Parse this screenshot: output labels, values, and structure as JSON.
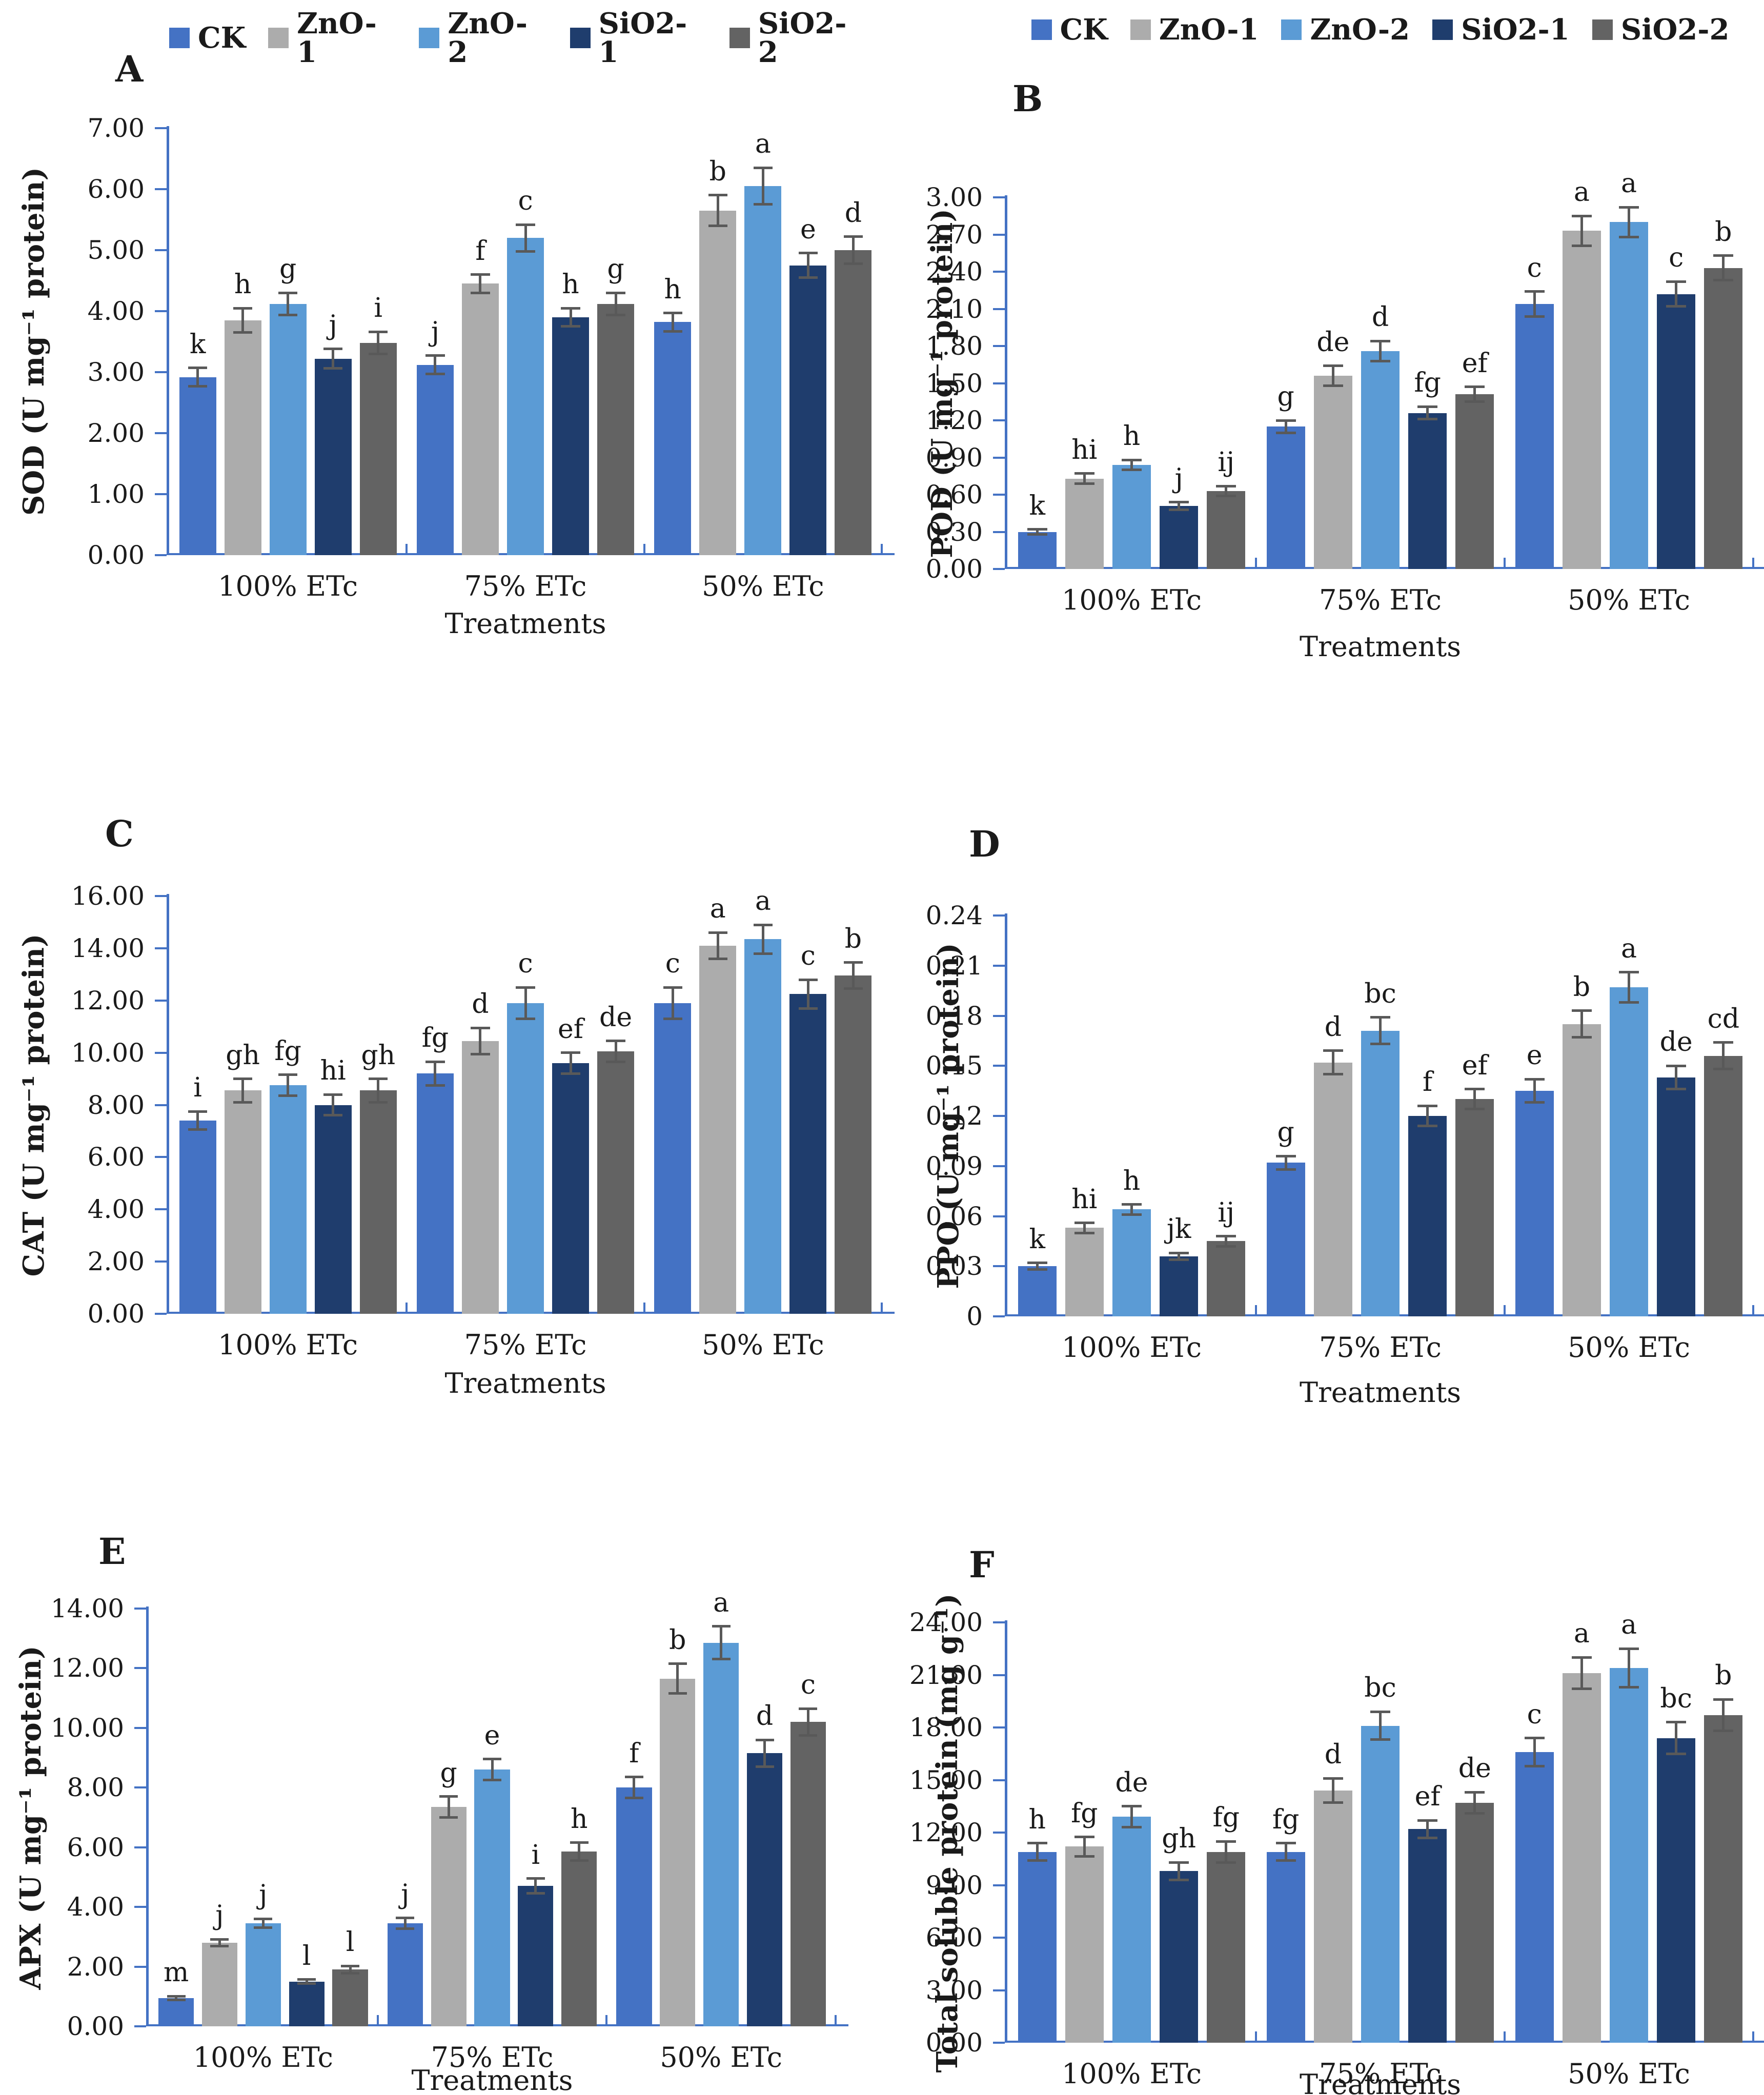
{
  "figure": {
    "x_axis_label": "Treatments",
    "categories": [
      "100% ETc",
      "75% ETc",
      "50% ETc"
    ]
  },
  "legend": {
    "items": [
      {
        "label": "CK",
        "color": "#4472C4"
      },
      {
        "label": "ZnO-1",
        "color": "#ACACAC"
      },
      {
        "label": "ZnO-2",
        "color": "#5B9BD5"
      },
      {
        "label": "SiO2-1",
        "color": "#1F3D6D"
      },
      {
        "label": "SiO2-2",
        "color": "#636363"
      }
    ]
  },
  "colors": {
    "axis": "#4472C4",
    "error_bar": "#595959",
    "text": "#1a1a1a"
  },
  "chart_data": [
    {
      "panel_letter": "A",
      "type": "bar",
      "ylabel": "SOD (U mg⁻¹ protein)",
      "xlabel": "Treatments",
      "ylim": [
        0,
        7
      ],
      "y_ticks": [
        "7.00",
        "6.00",
        "5.00",
        "4.00",
        "3.00",
        "2.00",
        "1.00",
        "0.00"
      ],
      "categories": [
        "100% ETc",
        "75% ETc",
        "50% ETc"
      ],
      "series": [
        {
          "name": "CK",
          "values": [
            2.92,
            3.12,
            3.82
          ],
          "errors": [
            0.15,
            0.15,
            0.15
          ],
          "sig_letters": [
            "k",
            "j",
            "h"
          ]
        },
        {
          "name": "ZnO-1",
          "values": [
            3.85,
            4.45,
            5.65
          ],
          "errors": [
            0.2,
            0.15,
            0.25
          ],
          "sig_letters": [
            "h",
            "f",
            "b"
          ]
        },
        {
          "name": "ZnO-2",
          "values": [
            4.12,
            5.2,
            6.05
          ],
          "errors": [
            0.18,
            0.22,
            0.3
          ],
          "sig_letters": [
            "g",
            "c",
            "a"
          ]
        },
        {
          "name": "SiO2-1",
          "values": [
            3.22,
            3.9,
            4.75
          ],
          "errors": [
            0.16,
            0.15,
            0.2
          ],
          "sig_letters": [
            "j",
            "h",
            "e"
          ]
        },
        {
          "name": "SiO2-2",
          "values": [
            3.48,
            4.12,
            5.0
          ],
          "errors": [
            0.18,
            0.18,
            0.22
          ],
          "sig_letters": [
            "i",
            "g",
            "d"
          ]
        }
      ]
    },
    {
      "panel_letter": "B",
      "type": "bar",
      "ylabel": "POD (U mg⁻¹ protein)",
      "xlabel": "Treatments",
      "ylim": [
        0,
        3
      ],
      "y_ticks": [
        "3.00",
        "2.70",
        "2.40",
        "2.10",
        "1.80",
        "1.50",
        "1.20",
        "0.90",
        "0.60",
        "0.30",
        "0.00"
      ],
      "categories": [
        "100% ETc",
        "75% ETc",
        "50% ETc"
      ],
      "series": [
        {
          "name": "CK",
          "values": [
            0.3,
            1.15,
            2.14
          ],
          "errors": [
            0.02,
            0.05,
            0.1
          ],
          "sig_letters": [
            "k",
            "g",
            "c"
          ]
        },
        {
          "name": "ZnO-1",
          "values": [
            0.73,
            1.56,
            2.73
          ],
          "errors": [
            0.04,
            0.08,
            0.12
          ],
          "sig_letters": [
            "hi",
            "de",
            "a"
          ]
        },
        {
          "name": "ZnO-2",
          "values": [
            0.84,
            1.76,
            2.8
          ],
          "errors": [
            0.04,
            0.08,
            0.12
          ],
          "sig_letters": [
            "h",
            "d",
            "a"
          ]
        },
        {
          "name": "SiO2-1",
          "values": [
            0.51,
            1.26,
            2.22
          ],
          "errors": [
            0.03,
            0.05,
            0.1
          ],
          "sig_letters": [
            "j",
            "fg",
            "c"
          ]
        },
        {
          "name": "SiO2-2",
          "values": [
            0.63,
            1.41,
            2.43
          ],
          "errors": [
            0.04,
            0.06,
            0.1
          ],
          "sig_letters": [
            "ij",
            "ef",
            "b"
          ]
        }
      ]
    },
    {
      "panel_letter": "C",
      "type": "bar",
      "ylabel": "CAT (U mg⁻¹ protein)",
      "xlabel": "Treatments",
      "ylim": [
        0,
        16
      ],
      "y_ticks": [
        "16.00",
        "14.00",
        "12.00",
        "10.00",
        "8.00",
        "6.00",
        "4.00",
        "2.00",
        "0.00"
      ],
      "categories": [
        "100% ETc",
        "75% ETc",
        "50% ETc"
      ],
      "series": [
        {
          "name": "CK",
          "values": [
            7.4,
            9.2,
            11.9
          ],
          "errors": [
            0.35,
            0.45,
            0.6
          ],
          "sig_letters": [
            "i",
            "fg",
            "c"
          ]
        },
        {
          "name": "ZnO-1",
          "values": [
            8.55,
            10.45,
            14.1
          ],
          "errors": [
            0.45,
            0.5,
            0.5
          ],
          "sig_letters": [
            "gh",
            "d",
            "a"
          ]
        },
        {
          "name": "ZnO-2",
          "values": [
            8.75,
            11.9,
            14.35
          ],
          "errors": [
            0.4,
            0.6,
            0.55
          ],
          "sig_letters": [
            "fg",
            "c",
            "a"
          ]
        },
        {
          "name": "SiO2-1",
          "values": [
            8.0,
            9.6,
            12.25
          ],
          "errors": [
            0.4,
            0.4,
            0.55
          ],
          "sig_letters": [
            "hi",
            "ef",
            "c"
          ]
        },
        {
          "name": "SiO2-2",
          "values": [
            8.55,
            10.05,
            12.95
          ],
          "errors": [
            0.45,
            0.4,
            0.5
          ],
          "sig_letters": [
            "gh",
            "de",
            "b"
          ]
        }
      ]
    },
    {
      "panel_letter": "D",
      "type": "bar",
      "ylabel": "PPO (U mg⁻¹ protein)",
      "xlabel": "Treatments",
      "ylim": [
        0,
        0.24
      ],
      "y_ticks": [
        "0.24",
        "0.21",
        "0.18",
        "0.15",
        "0.12",
        "0.09",
        "0.06",
        "0.03",
        "0"
      ],
      "categories": [
        "100% ETc",
        "75% ETc",
        "50% ETc"
      ],
      "series": [
        {
          "name": "CK",
          "values": [
            0.03,
            0.092,
            0.135
          ],
          "errors": [
            0.002,
            0.004,
            0.007
          ],
          "sig_letters": [
            "k",
            "g",
            "e"
          ]
        },
        {
          "name": "ZnO-1",
          "values": [
            0.053,
            0.152,
            0.175
          ],
          "errors": [
            0.003,
            0.007,
            0.008
          ],
          "sig_letters": [
            "hi",
            "d",
            "b"
          ]
        },
        {
          "name": "ZnO-2",
          "values": [
            0.064,
            0.171,
            0.197
          ],
          "errors": [
            0.003,
            0.008,
            0.009
          ],
          "sig_letters": [
            "h",
            "bc",
            "a"
          ]
        },
        {
          "name": "SiO2-1",
          "values": [
            0.036,
            0.12,
            0.143
          ],
          "errors": [
            0.002,
            0.006,
            0.007
          ],
          "sig_letters": [
            "jk",
            "f",
            "de"
          ]
        },
        {
          "name": "SiO2-2",
          "values": [
            0.045,
            0.13,
            0.156
          ],
          "errors": [
            0.003,
            0.006,
            0.008
          ],
          "sig_letters": [
            "ij",
            "ef",
            "cd"
          ]
        }
      ]
    },
    {
      "panel_letter": "E",
      "type": "bar",
      "ylabel": "APX (U mg⁻¹ protein)",
      "xlabel": "Treatments",
      "ylim": [
        0,
        14
      ],
      "y_ticks": [
        "14.00",
        "12.00",
        "10.00",
        "8.00",
        "6.00",
        "4.00",
        "2.00",
        "0.00"
      ],
      "categories": [
        "100% ETc",
        "75% ETc",
        "50% ETc"
      ],
      "series": [
        {
          "name": "CK",
          "values": [
            0.95,
            3.45,
            8.0
          ],
          "errors": [
            0.06,
            0.18,
            0.35
          ],
          "sig_letters": [
            "m",
            "j",
            "f"
          ]
        },
        {
          "name": "ZnO-1",
          "values": [
            2.8,
            7.35,
            11.65
          ],
          "errors": [
            0.12,
            0.35,
            0.5
          ],
          "sig_letters": [
            "j",
            "g",
            "b"
          ]
        },
        {
          "name": "ZnO-2",
          "values": [
            3.45,
            8.6,
            12.85
          ],
          "errors": [
            0.15,
            0.35,
            0.55
          ],
          "sig_letters": [
            "j",
            "e",
            "a"
          ]
        },
        {
          "name": "SiO2-1",
          "values": [
            1.5,
            4.7,
            9.15
          ],
          "errors": [
            0.07,
            0.25,
            0.45
          ],
          "sig_letters": [
            "l",
            "i",
            "d"
          ]
        },
        {
          "name": "SiO2-2",
          "values": [
            1.9,
            5.85,
            10.2
          ],
          "errors": [
            0.12,
            0.3,
            0.45
          ],
          "sig_letters": [
            "l",
            "h",
            "c"
          ]
        }
      ]
    },
    {
      "panel_letter": "F",
      "type": "bar",
      "ylabel": "Total soluble protein (mg g⁻¹)",
      "xlabel": "Treatments",
      "ylim": [
        0,
        24
      ],
      "y_ticks": [
        "24.00",
        "21.00",
        "18.00",
        "15.00",
        "12.00",
        "9.00",
        "6.00",
        "3.00",
        "0.00"
      ],
      "categories": [
        "100% ETc",
        "75% ETc",
        "50% ETc"
      ],
      "series": [
        {
          "name": "CK",
          "values": [
            10.9,
            10.9,
            16.6
          ],
          "errors": [
            0.5,
            0.5,
            0.8
          ],
          "sig_letters": [
            "h",
            "fg",
            "c"
          ]
        },
        {
          "name": "ZnO-1",
          "values": [
            11.2,
            14.4,
            21.1
          ],
          "errors": [
            0.55,
            0.7,
            0.9
          ],
          "sig_letters": [
            "fg",
            "d",
            "a"
          ]
        },
        {
          "name": "ZnO-2",
          "values": [
            12.9,
            18.1,
            21.4
          ],
          "errors": [
            0.6,
            0.8,
            1.1
          ],
          "sig_letters": [
            "de",
            "bc",
            "a"
          ]
        },
        {
          "name": "SiO2-1",
          "values": [
            9.8,
            12.2,
            17.4
          ],
          "errors": [
            0.5,
            0.5,
            0.9
          ],
          "sig_letters": [
            "gh",
            "ef",
            "bc"
          ]
        },
        {
          "name": "SiO2-2",
          "values": [
            10.9,
            13.7,
            18.7
          ],
          "errors": [
            0.6,
            0.6,
            0.9
          ],
          "sig_letters": [
            "fg",
            "de",
            "b"
          ]
        }
      ]
    }
  ]
}
